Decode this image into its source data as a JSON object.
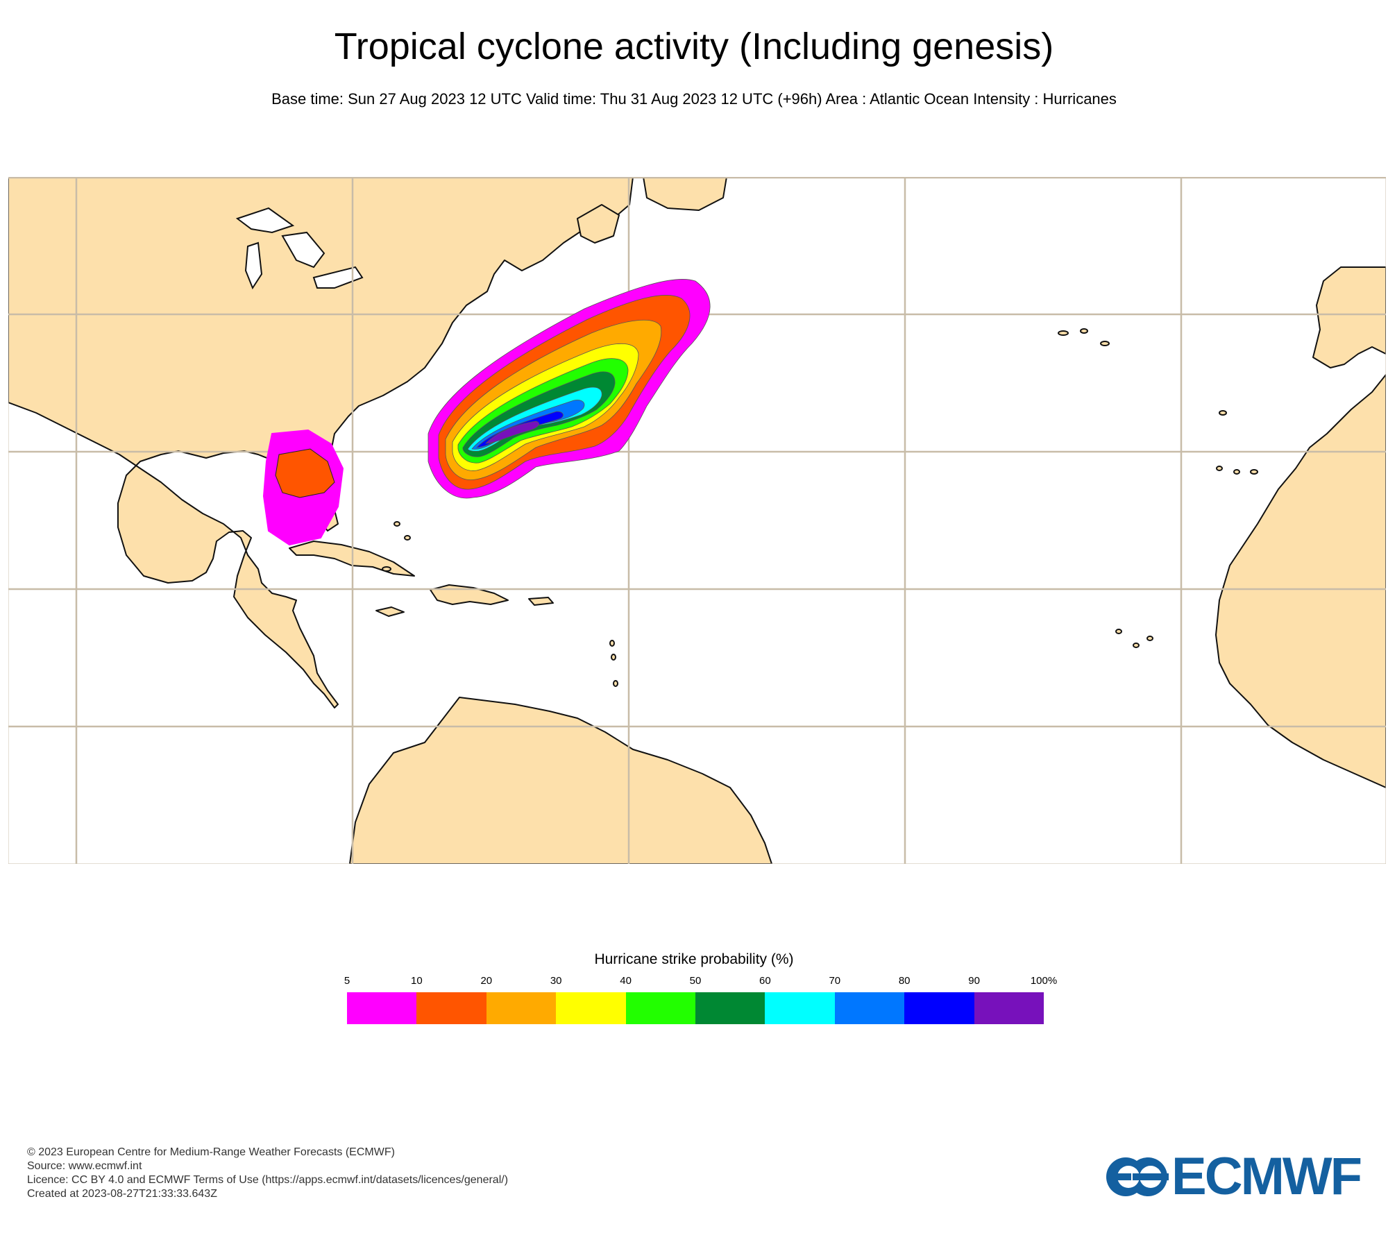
{
  "title": "Tropical cyclone activity (Including genesis)",
  "subtitle": "Base time: Sun 27 Aug 2023 12 UTC Valid time: Thu 31 Aug 2023 12 UTC (+96h) Area : Atlantic Ocean Intensity : Hurricanes",
  "map": {
    "ocean_color": "#ffffff",
    "land_color": "#fde0ab",
    "coast_color": "#111111",
    "grid_color": "#c8bca8"
  },
  "legend": {
    "title": "Hurricane strike probability (%)",
    "ticks": [
      "5",
      "10",
      "20",
      "30",
      "40",
      "50",
      "60",
      "70",
      "80",
      "90",
      "100%"
    ],
    "colors": [
      "#ff00ff",
      "#ff5500",
      "#ffaa00",
      "#ffff00",
      "#22ff00",
      "#008833",
      "#00ffff",
      "#0077ff",
      "#0000ff",
      "#7711bb"
    ]
  },
  "footer": {
    "copyright": "© 2023 European Centre for Medium-Range Weather Forecasts (ECMWF)",
    "source": "Source: www.ecmwf.int",
    "licence": "Licence: CC BY 4.0 and ECMWF Terms of Use (https://apps.ecmwf.int/datasets/licences/general/)",
    "created": "Created at 2023-08-27T21:33:33.643Z"
  },
  "logo": {
    "text": "ECMWF",
    "color": "#1460a0"
  }
}
